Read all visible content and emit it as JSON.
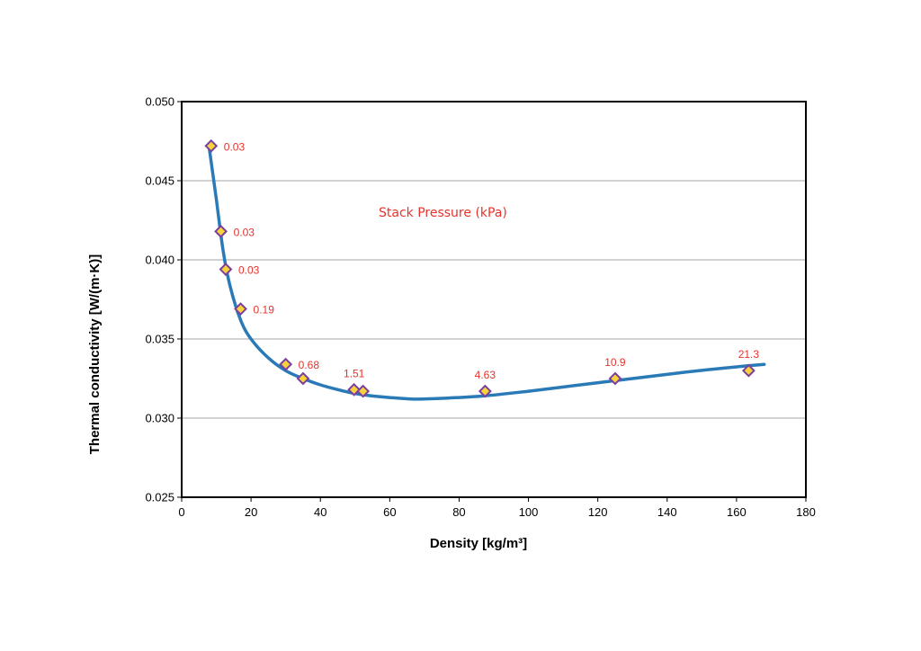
{
  "chart_data": {
    "type": "scatter",
    "title": "",
    "xlabel": "Density  [kg/m³]",
    "ylabel": "Thermal conductivity  [W/(m·K)]",
    "annotation": "Stack Pressure (kPa)",
    "xlim": [
      0,
      180
    ],
    "ylim": [
      0.025,
      0.05
    ],
    "x_ticks": [
      0,
      20,
      40,
      60,
      80,
      100,
      120,
      140,
      160,
      180
    ],
    "y_ticks": [
      0.025,
      0.03,
      0.035,
      0.04,
      0.045,
      0.05
    ],
    "x_tick_labels": [
      "0",
      "20",
      "40",
      "60",
      "80",
      "100",
      "120",
      "140",
      "160",
      "180"
    ],
    "y_tick_labels": [
      "0.025",
      "0.030",
      "0.035",
      "0.040",
      "0.045",
      "0.050"
    ],
    "grid": "horizontal",
    "points": [
      {
        "x": 8.5,
        "y": 0.0472,
        "label": "0.03"
      },
      {
        "x": 11.3,
        "y": 0.0418,
        "label": "0.03"
      },
      {
        "x": 12.7,
        "y": 0.0394,
        "label": "0.03"
      },
      {
        "x": 17.0,
        "y": 0.0369,
        "label": "0.19"
      },
      {
        "x": 30.0,
        "y": 0.0334,
        "label": "0.68"
      },
      {
        "x": 35.0,
        "y": 0.0325,
        "label": ""
      },
      {
        "x": 49.7,
        "y": 0.0318,
        "label": "1.51"
      },
      {
        "x": 52.3,
        "y": 0.0317,
        "label": ""
      },
      {
        "x": 87.5,
        "y": 0.0317,
        "label": "4.63"
      },
      {
        "x": 125.0,
        "y": 0.0325,
        "label": "10.9"
      },
      {
        "x": 163.5,
        "y": 0.033,
        "label": "21.3"
      }
    ],
    "trend_line": {
      "x": [
        8.0,
        10,
        12,
        14,
        17,
        20,
        25,
        30,
        35,
        40,
        45,
        50,
        55,
        60,
        67,
        75,
        87,
        100,
        115,
        130,
        145,
        158,
        168
      ],
      "y": [
        0.047,
        0.0438,
        0.0405,
        0.0383,
        0.0362,
        0.035,
        0.0338,
        0.033,
        0.0325,
        0.0321,
        0.0318,
        0.03155,
        0.0314,
        0.0313,
        0.0312,
        0.03125,
        0.0314,
        0.0317,
        0.0321,
        0.0325,
        0.0329,
        0.0332,
        0.0334
      ]
    },
    "colors": {
      "line": "#2a7ab8",
      "marker_fill": "#f6d33a",
      "marker_edge": "#7b3fa0",
      "label": "#e8322b",
      "grid": "#a6a6a6"
    }
  }
}
